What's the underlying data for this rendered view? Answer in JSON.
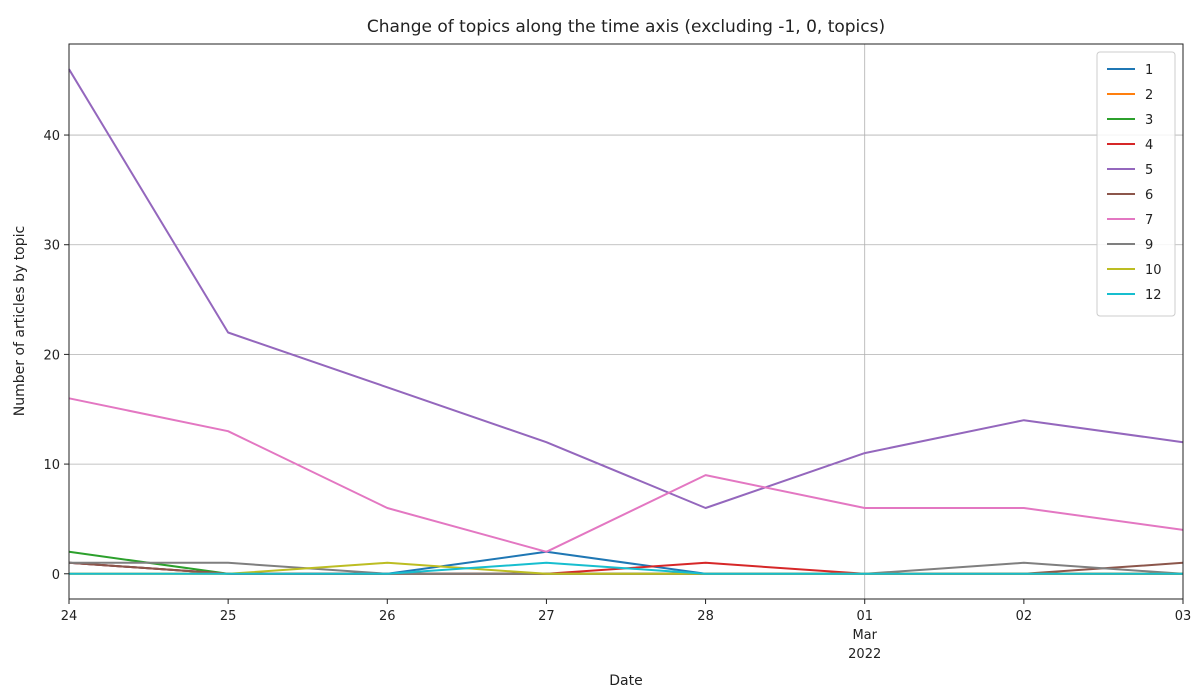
{
  "chart_data": {
    "type": "line",
    "title": "Change of topics along the time axis (excluding -1, 0, topics)",
    "xlabel": "Date",
    "ylabel": "Number of articles by topic",
    "x": [
      "2022-02-24",
      "2022-02-25",
      "2022-02-26",
      "2022-02-27",
      "2022-02-28",
      "2022-03-01",
      "2022-03-02",
      "2022-03-03"
    ],
    "x_tick_labels": [
      {
        "day": "24",
        "month": "",
        "year": ""
      },
      {
        "day": "25",
        "month": "",
        "year": ""
      },
      {
        "day": "26",
        "month": "",
        "year": ""
      },
      {
        "day": "27",
        "month": "",
        "year": ""
      },
      {
        "day": "28",
        "month": "",
        "year": ""
      },
      {
        "day": "01",
        "month": "Mar",
        "year": "2022"
      },
      {
        "day": "02",
        "month": "",
        "year": ""
      },
      {
        "day": "03",
        "month": "",
        "year": ""
      }
    ],
    "ylim": [
      -2.3,
      48.3
    ],
    "yticks": [
      0,
      10,
      20,
      30,
      40
    ],
    "grid": "on",
    "legend_position": "top-right",
    "series": [
      {
        "name": "1",
        "color": "#1f77b4",
        "values": [
          1,
          0,
          0,
          2,
          0,
          0,
          0,
          0
        ]
      },
      {
        "name": "2",
        "color": "#ff7f0e",
        "values": [
          0,
          0,
          0,
          0,
          0,
          0,
          0,
          0
        ]
      },
      {
        "name": "3",
        "color": "#2ca02c",
        "values": [
          2,
          0,
          0,
          0,
          0,
          0,
          0,
          0
        ]
      },
      {
        "name": "4",
        "color": "#d62728",
        "values": [
          1,
          0,
          0,
          0,
          1,
          0,
          0,
          0
        ]
      },
      {
        "name": "5",
        "color": "#9467bd",
        "values": [
          46,
          22,
          17,
          12,
          6,
          11,
          14,
          12
        ]
      },
      {
        "name": "6",
        "color": "#8c564b",
        "values": [
          1,
          0,
          0,
          0,
          0,
          0,
          0,
          1
        ]
      },
      {
        "name": "7",
        "color": "#e377c2",
        "values": [
          16,
          13,
          6,
          2,
          9,
          6,
          6,
          4
        ]
      },
      {
        "name": "9",
        "color": "#7f7f7f",
        "values": [
          1,
          1,
          0,
          0,
          0,
          0,
          1,
          0
        ]
      },
      {
        "name": "10",
        "color": "#bcbd22",
        "values": [
          0,
          0,
          1,
          0,
          0,
          0,
          0,
          0
        ]
      },
      {
        "name": "12",
        "color": "#17becf",
        "values": [
          0,
          0,
          0,
          1,
          0,
          0,
          0,
          0
        ]
      }
    ]
  }
}
